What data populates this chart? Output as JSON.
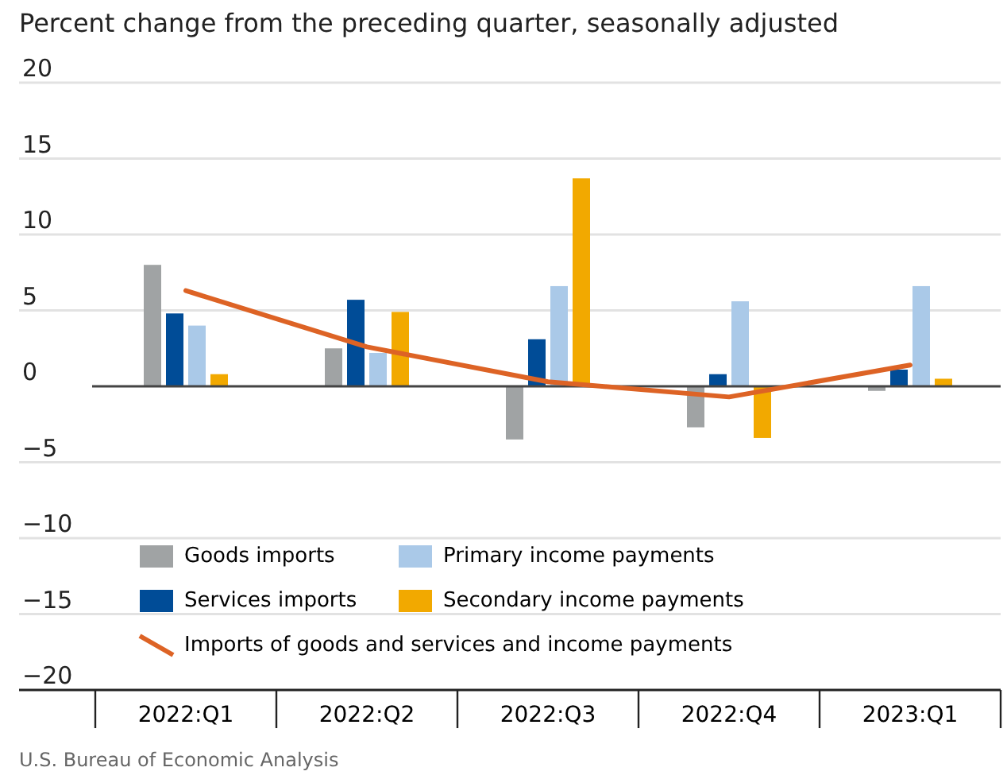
{
  "chart_data": {
    "type": "bar",
    "title": "Percent change from the preceding quarter, seasonally adjusted",
    "categories": [
      "2022:Q1",
      "2022:Q2",
      "2022:Q3",
      "2022:Q4",
      "2023:Q1"
    ],
    "series": [
      {
        "name": "Goods imports",
        "color": "#a0a3a4",
        "values": [
          8.0,
          2.5,
          -3.5,
          -2.7,
          -0.3
        ]
      },
      {
        "name": "Services imports",
        "color": "#004c97",
        "values": [
          4.8,
          5.7,
          3.1,
          0.8,
          1.1
        ]
      },
      {
        "name": "Primary income payments",
        "color": "#aac9e8",
        "values": [
          4.0,
          2.2,
          6.6,
          5.6,
          6.6
        ]
      },
      {
        "name": "Secondary income payments",
        "color": "#f2a900",
        "values": [
          0.8,
          4.9,
          13.7,
          -3.4,
          0.5
        ]
      },
      {
        "name": "Imports of goods and services and income payments",
        "type": "line",
        "color": "#dd6325",
        "values": [
          6.3,
          2.6,
          0.3,
          -0.7,
          1.4
        ]
      }
    ],
    "ylim": [
      -20,
      20
    ],
    "yticks": [
      -20,
      -15,
      -10,
      -5,
      0,
      5,
      10,
      15,
      20
    ],
    "grid": "y",
    "legend": "bottom left",
    "annotations": [
      "U.S. Bureau of Economic Analysis"
    ]
  }
}
